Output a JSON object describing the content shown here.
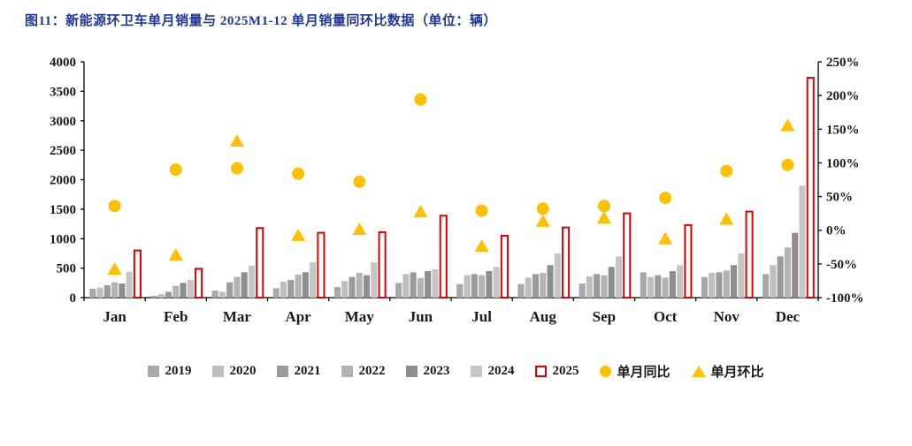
{
  "header": {
    "title": "图11：新能源环卫车单月销量与 2025M1-12 单月销量同环比数据（单位：辆）"
  },
  "colors": {
    "title": "#1f3799",
    "axis_text": "#1a1a1a",
    "axis_line": "#000000",
    "bar_2025_stroke": "#e00000",
    "marker_yellow": "#ffc000"
  },
  "chart_data": {
    "type": "bar",
    "title": "新能源环卫车单月销量与 2025M1-12 单月销量同环比数据（单位：辆）",
    "xlabel": "",
    "ylabel": "",
    "grid": false,
    "legend_position": "bottom",
    "categories": [
      "Jan",
      "Feb",
      "Mar",
      "Apr",
      "May",
      "Jun",
      "Jul",
      "Aug",
      "Sep",
      "Oct",
      "Nov",
      "Dec"
    ],
    "left_axis": {
      "min": 0,
      "max": 4000,
      "step": 500,
      "ticks": [
        "0",
        "500",
        "1000",
        "1500",
        "2000",
        "2500",
        "3000",
        "3500",
        "4000"
      ]
    },
    "right_axis": {
      "min": -100,
      "max": 250,
      "step": 50,
      "ticks": [
        "-100%",
        "-50%",
        "0%",
        "50%",
        "100%",
        "150%",
        "200%",
        "250%"
      ]
    },
    "series": [
      {
        "name": "2019",
        "type": "bar",
        "axis": "left",
        "color": "#a9a9a9",
        "values": [
          150,
          30,
          120,
          160,
          180,
          250,
          230,
          230,
          240,
          430,
          350,
          400
        ]
      },
      {
        "name": "2020",
        "type": "bar",
        "axis": "left",
        "color": "#bfbfbf",
        "values": [
          170,
          60,
          100,
          270,
          280,
          400,
          380,
          340,
          360,
          350,
          420,
          550
        ]
      },
      {
        "name": "2021",
        "type": "bar",
        "axis": "left",
        "color": "#9b9b9b",
        "values": [
          210,
          100,
          260,
          300,
          350,
          430,
          400,
          400,
          400,
          380,
          430,
          700
        ]
      },
      {
        "name": "2022",
        "type": "bar",
        "axis": "left",
        "color": "#b3b3b3",
        "values": [
          260,
          200,
          350,
          390,
          420,
          330,
          380,
          420,
          380,
          340,
          460,
          850
        ]
      },
      {
        "name": "2023",
        "type": "bar",
        "axis": "left",
        "color": "#8e8e8e",
        "values": [
          240,
          250,
          430,
          430,
          380,
          450,
          450,
          550,
          520,
          450,
          550,
          1100
        ]
      },
      {
        "name": "2024",
        "type": "bar",
        "axis": "left",
        "color": "#c6c6c6",
        "values": [
          440,
          300,
          540,
          600,
          600,
          480,
          520,
          750,
          700,
          550,
          750,
          1900
        ]
      },
      {
        "name": "2025",
        "type": "bar",
        "axis": "left",
        "style": "hollow",
        "color": "#e00000",
        "values": [
          800,
          490,
          1180,
          1100,
          1110,
          1390,
          1050,
          1190,
          1430,
          1230,
          1460,
          3730
        ]
      },
      {
        "name": "单月同比",
        "type": "scatter",
        "marker": "circle",
        "axis": "right",
        "color": "#ffc000",
        "values": [
          36,
          90,
          92,
          84,
          72,
          194,
          29,
          32,
          36,
          48,
          88,
          97
        ]
      },
      {
        "name": "单月环比",
        "type": "scatter",
        "marker": "triangle",
        "axis": "right",
        "color": "#ffc000",
        "values": [
          -58,
          -37,
          132,
          -8,
          1,
          27,
          -24,
          13,
          18,
          -13,
          16,
          155
        ]
      }
    ]
  },
  "legend": {
    "items": [
      {
        "label": "2019",
        "swatch": "square",
        "color": "#a9a9a9"
      },
      {
        "label": "2020",
        "swatch": "square",
        "color": "#bfbfbf"
      },
      {
        "label": "2021",
        "swatch": "square",
        "color": "#9b9b9b"
      },
      {
        "label": "2022",
        "swatch": "square",
        "color": "#b3b3b3"
      },
      {
        "label": "2023",
        "swatch": "square",
        "color": "#8e8e8e"
      },
      {
        "label": "2024",
        "swatch": "square",
        "color": "#c6c6c6"
      },
      {
        "label": "2025",
        "swatch": "hollow-square",
        "color": "#e00000"
      },
      {
        "label": "单月同比",
        "swatch": "circle",
        "color": "#ffc000"
      },
      {
        "label": "单月环比",
        "swatch": "triangle",
        "color": "#ffc000"
      }
    ]
  }
}
